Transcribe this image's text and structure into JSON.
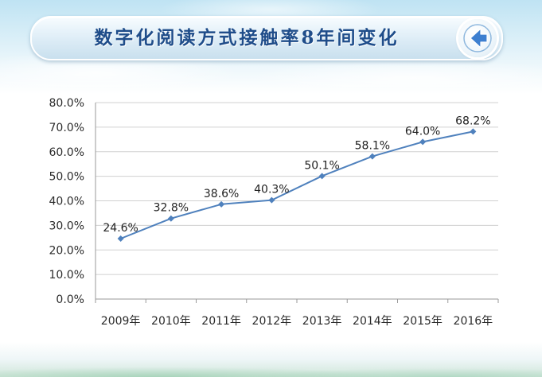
{
  "header": {
    "title": "数字化阅读方式接触率8年间变化",
    "back_icon": "back-arrow-icon"
  },
  "colors": {
    "line": "#4f81bd",
    "grid": "#d0d0d0",
    "axis": "#9a9a9a",
    "title": "#1f4d8a",
    "back_arrow": "#3d7fd0"
  },
  "chart_data": {
    "type": "line",
    "categories": [
      "2009年",
      "2010年",
      "2011年",
      "2012年",
      "2013年",
      "2014年",
      "2015年",
      "2016年"
    ],
    "series": [
      {
        "values": [
          24.6,
          32.8,
          38.6,
          40.3,
          50.1,
          58.1,
          64.0,
          68.2
        ]
      }
    ],
    "data_labels": [
      "24.6%",
      "32.8%",
      "38.6%",
      "40.3%",
      "50.1%",
      "58.1%",
      "64.0%",
      "68.2%"
    ],
    "y_ticks": [
      "0.0%",
      "10.0%",
      "20.0%",
      "30.0%",
      "40.0%",
      "50.0%",
      "60.0%",
      "70.0%",
      "80.0%"
    ],
    "ylim": [
      0,
      80
    ],
    "grid": true,
    "legend": "none"
  }
}
